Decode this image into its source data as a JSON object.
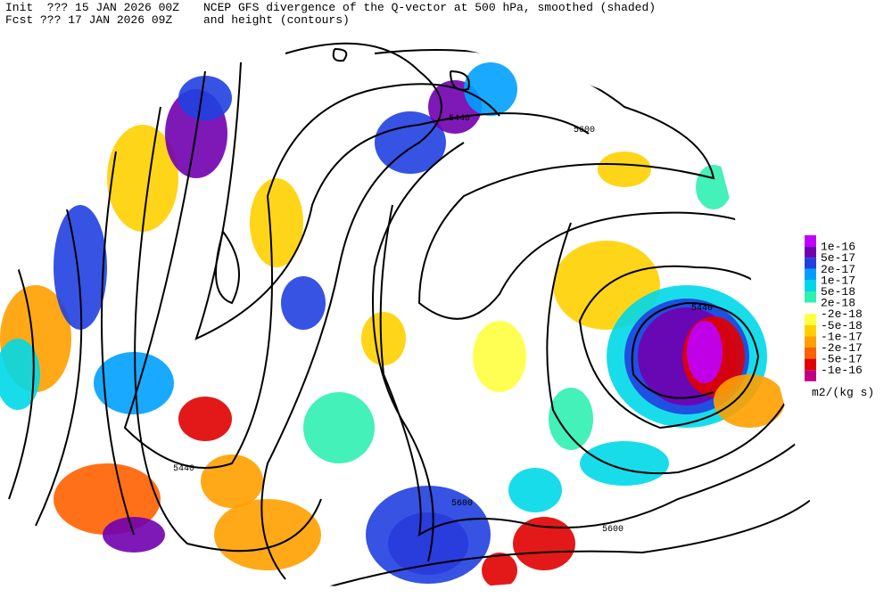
{
  "header": {
    "init": "Init  ??? 15 JAN 2026 00Z",
    "forecast": "Fcst ??? 17 JAN 2026 09Z",
    "title_line1": "NCEP GFS divergence of the Q-vector at 500 hPa, smoothed (shaded)",
    "title_line2": "and height (contours)"
  },
  "contour_labels": [
    "5440",
    "5600",
    "5440",
    "5440",
    "5600",
    "5600"
  ],
  "colorbar": {
    "labels": [
      "1e-16",
      "5e-17",
      "2e-17",
      "1e-17",
      "5e-18",
      "2e-18",
      "-2e-18",
      "-5e-18",
      "-1e-17",
      "-2e-17",
      "-5e-17",
      "-1e-16"
    ],
    "units": "m2/(kg s)"
  }
}
